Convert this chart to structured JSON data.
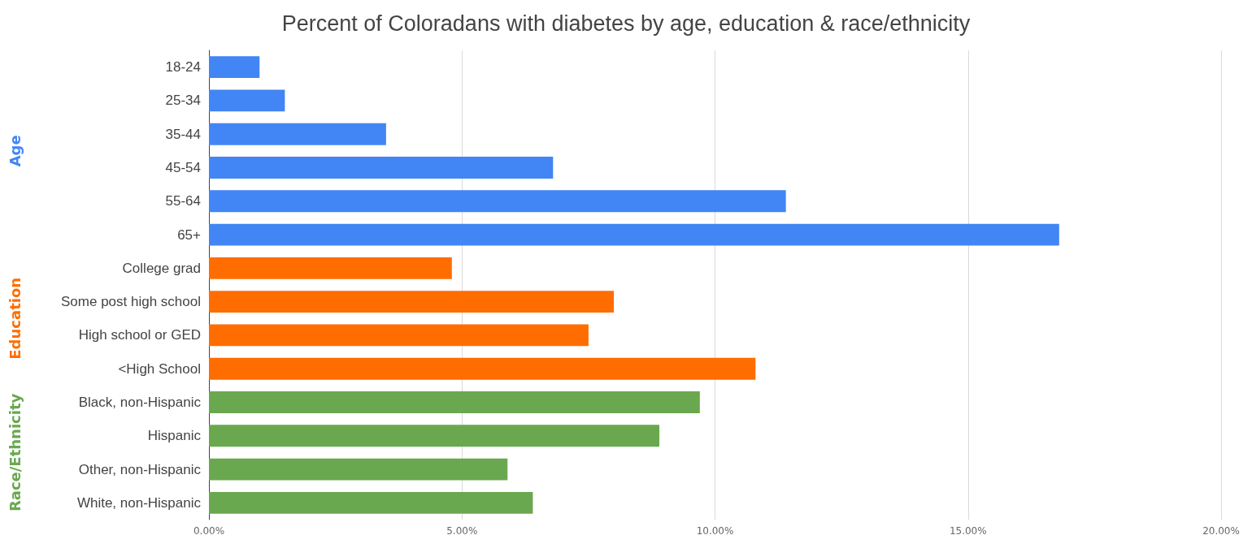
{
  "chart_data": {
    "type": "bar",
    "orientation": "horizontal",
    "stacked": true,
    "title": "Percent of Coloradans with diabetes by age, education & race/ethnicity",
    "categories": [
      "18-24",
      "25-34",
      "35-44",
      "45-54",
      "55-64",
      "65+",
      "College grad",
      "Some post high school",
      "High school or GED",
      "<High School",
      "Black, non-Hispanic",
      "Hispanic",
      "Other, non-Hispanic",
      "White, non-Hispanic"
    ],
    "series": [
      {
        "name": "Age",
        "color": "#4285f4",
        "values": [
          1.0,
          1.5,
          3.5,
          6.8,
          11.4,
          16.8,
          null,
          null,
          null,
          null,
          null,
          null,
          null,
          null
        ]
      },
      {
        "name": "Education",
        "color": "#ff6d01",
        "values": [
          null,
          null,
          null,
          null,
          null,
          null,
          4.8,
          8.0,
          7.5,
          10.8,
          null,
          null,
          null,
          null
        ]
      },
      {
        "name": "Race/Ethnicity",
        "color": "#6aa84f",
        "values": [
          null,
          null,
          null,
          null,
          null,
          null,
          null,
          null,
          null,
          null,
          9.7,
          8.9,
          5.9,
          6.4
        ]
      }
    ],
    "xlim": [
      0,
      20
    ],
    "xticks": [
      {
        "value": 0,
        "label": "0.00%"
      },
      {
        "value": 5,
        "label": "5.00%"
      },
      {
        "value": 10,
        "label": "10.00%"
      },
      {
        "value": 15,
        "label": "15.00%"
      },
      {
        "value": 20,
        "label": "20.00%"
      }
    ],
    "grid": "x",
    "legend": false
  }
}
